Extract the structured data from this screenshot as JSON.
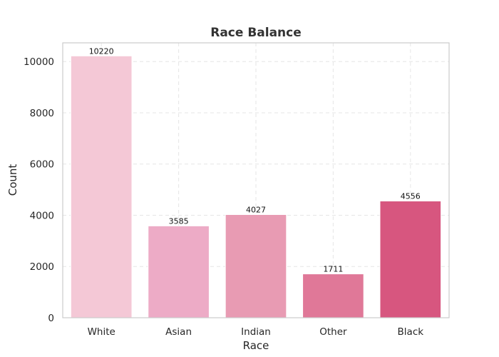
{
  "chart_data": {
    "type": "bar",
    "title": "Race Balance",
    "xlabel": "Race",
    "ylabel": "Count",
    "categories": [
      "White",
      "Asian",
      "Indian",
      "Other",
      "Black"
    ],
    "values": [
      10220,
      3585,
      4027,
      1711,
      4556
    ],
    "data_labels": [
      "10220",
      "3585",
      "4027",
      "1711",
      "4556"
    ],
    "colors": [
      "#f4c8d6",
      "#edabc6",
      "#e89bb3",
      "#e07898",
      "#d7567f"
    ],
    "ylim": [
      0,
      10730
    ],
    "yticks": [
      0,
      2000,
      4000,
      6000,
      8000,
      10000
    ],
    "ytick_labels": [
      "0",
      "2000",
      "4000",
      "6000",
      "8000",
      "10000"
    ],
    "grid": true,
    "legend": "none"
  }
}
